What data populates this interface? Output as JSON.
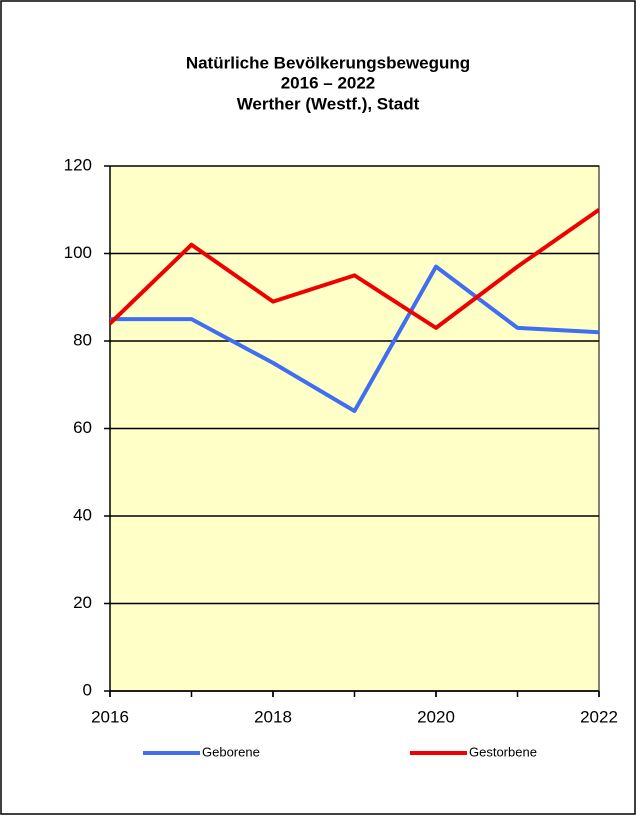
{
  "chart_data": {
    "type": "line",
    "title": [
      "Natürliche Bevölkerungsbewegung",
      "2016 – 2022",
      "Werther (Westf.), Stadt"
    ],
    "x": [
      2016,
      2017,
      2018,
      2019,
      2020,
      2021,
      2022
    ],
    "series": [
      {
        "name": "Geborene",
        "color": "#3f6ef0",
        "values": [
          85,
          85,
          75,
          64,
          97,
          83,
          82
        ]
      },
      {
        "name": "Gestorbene",
        "color": "#f00000",
        "values": [
          84,
          102,
          89,
          95,
          83,
          97,
          110
        ]
      }
    ],
    "xlim": [
      2016,
      2022
    ],
    "xticks": [
      2016,
      2018,
      2020,
      2022
    ],
    "ylim": [
      0,
      120
    ],
    "yticks": [
      0,
      20,
      40,
      60,
      80,
      100,
      120
    ],
    "grid": true,
    "background": "#ffffc8",
    "legend": "bottom"
  }
}
